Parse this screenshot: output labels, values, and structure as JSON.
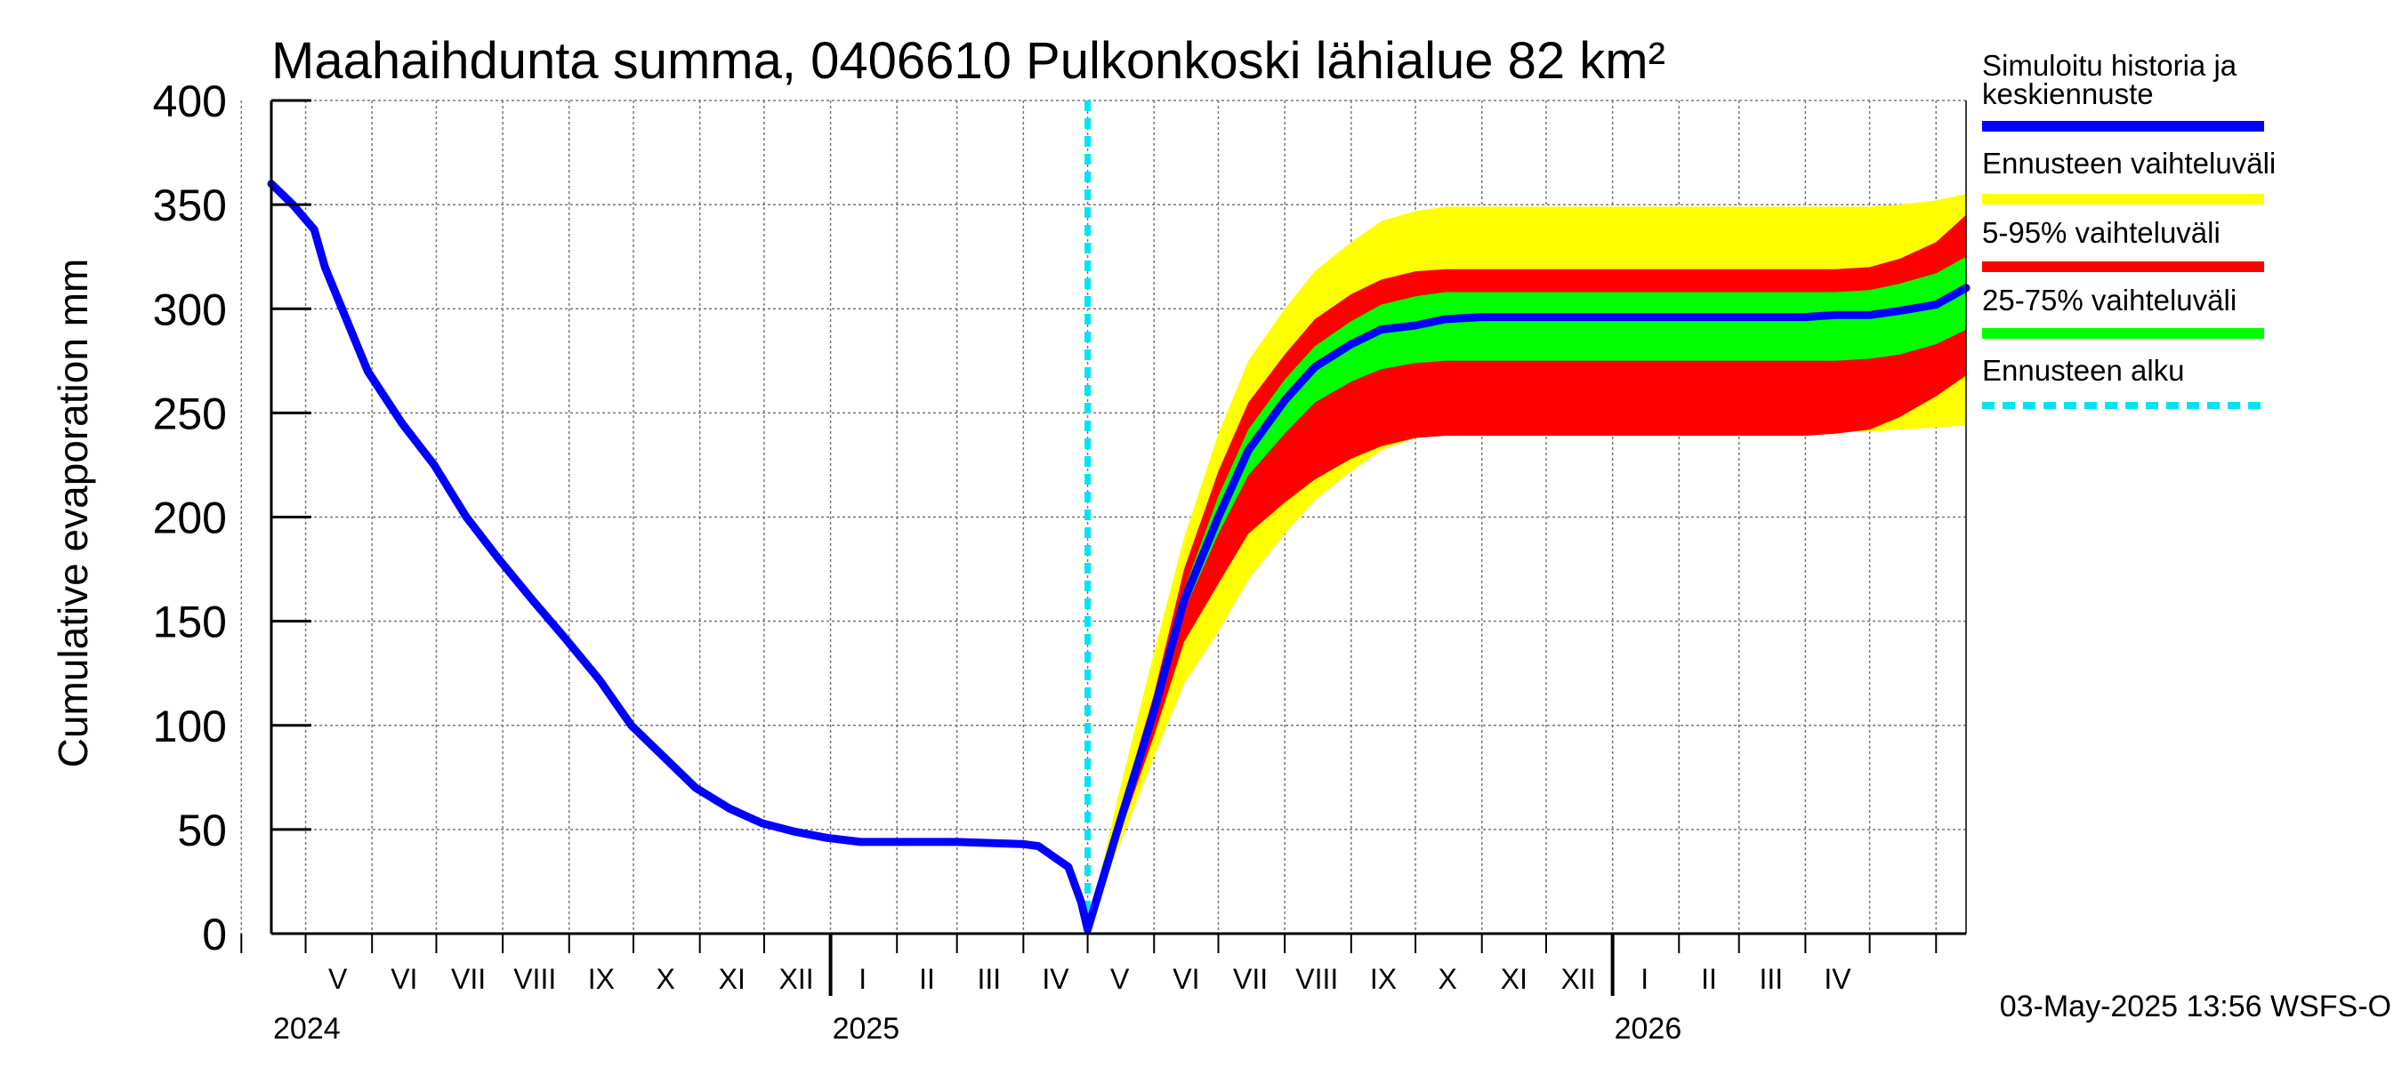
{
  "chart_data": {
    "type": "area",
    "title": "Maahaihdunta summa, 0406610 Pulkonkoski lähialue 82 km²",
    "ylabel": "Cumulative evaporation   mm",
    "xlabel": "",
    "ylim": [
      0,
      400
    ],
    "yticks": [
      0,
      50,
      100,
      150,
      200,
      250,
      300,
      350,
      400
    ],
    "grid": true,
    "x_start": "2024-04-15",
    "x_end": "2026-06-15",
    "forecast_start": "2025-05-01",
    "month_labels": [
      {
        "label": "V",
        "mid": "2024-05-16"
      },
      {
        "label": "VI",
        "mid": "2024-06-16"
      },
      {
        "label": "VII",
        "mid": "2024-07-16"
      },
      {
        "label": "VIII",
        "mid": "2024-08-16"
      },
      {
        "label": "IX",
        "mid": "2024-09-16"
      },
      {
        "label": "X",
        "mid": "2024-10-16"
      },
      {
        "label": "XI",
        "mid": "2024-11-16"
      },
      {
        "label": "XII",
        "mid": "2024-12-16"
      },
      {
        "label": "I",
        "mid": "2025-01-16"
      },
      {
        "label": "II",
        "mid": "2025-02-15"
      },
      {
        "label": "III",
        "mid": "2025-03-16"
      },
      {
        "label": "IV",
        "mid": "2025-04-16"
      },
      {
        "label": "V",
        "mid": "2025-05-16"
      },
      {
        "label": "VI",
        "mid": "2025-06-16"
      },
      {
        "label": "VII",
        "mid": "2025-07-16"
      },
      {
        "label": "VIII",
        "mid": "2025-08-16"
      },
      {
        "label": "IX",
        "mid": "2025-09-16"
      },
      {
        "label": "X",
        "mid": "2025-10-16"
      },
      {
        "label": "XI",
        "mid": "2025-11-16"
      },
      {
        "label": "XII",
        "mid": "2025-12-16"
      },
      {
        "label": "I",
        "mid": "2026-01-16"
      },
      {
        "label": "II",
        "mid": "2026-02-15"
      },
      {
        "label": "III",
        "mid": "2026-03-16"
      },
      {
        "label": "IV",
        "mid": "2026-04-16"
      }
    ],
    "year_labels": [
      {
        "label": "2024",
        "date": "2024-04-15"
      },
      {
        "label": "2025",
        "date": "2025-01-01"
      },
      {
        "label": "2026",
        "date": "2026-01-01"
      }
    ],
    "history": {
      "name": "Simuloitu historia ja keskiennuste",
      "color": "#0000ff",
      "points": [
        [
          "2024-04-15",
          360
        ],
        [
          "2024-04-25",
          350
        ],
        [
          "2024-05-05",
          338
        ],
        [
          "2024-05-10",
          320
        ],
        [
          "2024-05-20",
          295
        ],
        [
          "2024-05-30",
          270
        ],
        [
          "2024-06-15",
          245
        ],
        [
          "2024-06-30",
          225
        ],
        [
          "2024-07-15",
          200
        ],
        [
          "2024-07-30",
          180
        ],
        [
          "2024-08-15",
          160
        ],
        [
          "2024-08-30",
          142
        ],
        [
          "2024-09-15",
          122
        ],
        [
          "2024-09-30",
          100
        ],
        [
          "2024-10-15",
          85
        ],
        [
          "2024-10-30",
          70
        ],
        [
          "2024-11-15",
          60
        ],
        [
          "2024-11-30",
          53
        ],
        [
          "2024-12-15",
          49
        ],
        [
          "2024-12-30",
          46
        ],
        [
          "2025-01-15",
          44
        ],
        [
          "2025-03-01",
          44
        ],
        [
          "2025-04-01",
          43
        ],
        [
          "2025-04-08",
          42
        ],
        [
          "2025-04-15",
          37
        ],
        [
          "2025-04-22",
          32
        ],
        [
          "2025-04-28",
          15
        ],
        [
          "2025-05-01",
          2
        ]
      ]
    },
    "series": [
      {
        "name": "Ennusteen vaihteluväli",
        "color": "#ffff00",
        "dates": [
          "2025-05-01",
          "2025-05-15",
          "2025-06-01",
          "2025-06-15",
          "2025-07-01",
          "2025-07-15",
          "2025-08-01",
          "2025-08-15",
          "2025-09-01",
          "2025-09-15",
          "2025-10-01",
          "2025-10-15",
          "2025-11-01",
          "2025-12-01",
          "2026-01-01",
          "2026-02-01",
          "2026-03-01",
          "2026-04-01",
          "2026-04-15",
          "2026-05-01",
          "2026-05-15",
          "2026-06-01",
          "2026-06-15"
        ],
        "lower": [
          2,
          40,
          85,
          120,
          145,
          170,
          192,
          208,
          222,
          232,
          238,
          240,
          241,
          241,
          241,
          241,
          241,
          241,
          241,
          241,
          242,
          243,
          244
        ],
        "upper": [
          2,
          65,
          135,
          190,
          240,
          275,
          300,
          318,
          332,
          342,
          347,
          349,
          349,
          349,
          349,
          349,
          349,
          349,
          349,
          349,
          350,
          352,
          355
        ]
      },
      {
        "name": "5-95% vaihteluväli",
        "color": "#ff0000",
        "dates": [
          "2025-05-01",
          "2025-05-15",
          "2025-06-01",
          "2025-06-15",
          "2025-07-01",
          "2025-07-15",
          "2025-08-01",
          "2025-08-15",
          "2025-09-01",
          "2025-09-15",
          "2025-10-01",
          "2025-10-15",
          "2025-11-01",
          "2025-12-01",
          "2026-01-01",
          "2026-02-01",
          "2026-03-01",
          "2026-04-01",
          "2026-04-15",
          "2026-05-01",
          "2026-05-15",
          "2026-06-01",
          "2026-06-15"
        ],
        "lower": [
          2,
          45,
          95,
          140,
          168,
          192,
          207,
          218,
          228,
          234,
          238,
          239,
          239,
          239,
          239,
          239,
          239,
          239,
          240,
          242,
          248,
          258,
          268
        ],
        "upper": [
          2,
          55,
          115,
          175,
          222,
          255,
          278,
          295,
          307,
          314,
          318,
          319,
          319,
          319,
          319,
          319,
          319,
          319,
          319,
          320,
          324,
          332,
          345
        ]
      },
      {
        "name": "25-75% vaihteluväli",
        "color": "#00ff00",
        "dates": [
          "2025-05-01",
          "2025-05-15",
          "2025-06-01",
          "2025-06-15",
          "2025-07-01",
          "2025-07-15",
          "2025-08-01",
          "2025-08-15",
          "2025-09-01",
          "2025-09-15",
          "2025-10-01",
          "2025-10-15",
          "2025-11-01",
          "2025-12-01",
          "2026-01-01",
          "2026-02-01",
          "2026-03-01",
          "2026-04-01",
          "2026-04-15",
          "2026-05-01",
          "2026-05-15",
          "2026-06-01",
          "2026-06-15"
        ],
        "lower": [
          2,
          50,
          105,
          155,
          192,
          220,
          240,
          255,
          265,
          271,
          274,
          275,
          275,
          275,
          275,
          275,
          275,
          275,
          275,
          276,
          278,
          283,
          290
        ],
        "upper": [
          2,
          52,
          110,
          165,
          210,
          242,
          266,
          282,
          294,
          302,
          306,
          308,
          308,
          308,
          308,
          308,
          308,
          308,
          308,
          309,
          312,
          317,
          325
        ]
      },
      {
        "name": "Keskiennuste",
        "color": "#0000ff",
        "dates": [
          "2025-05-01",
          "2025-05-15",
          "2025-06-01",
          "2025-06-15",
          "2025-07-01",
          "2025-07-15",
          "2025-08-01",
          "2025-08-15",
          "2025-09-01",
          "2025-09-15",
          "2025-10-01",
          "2025-10-15",
          "2025-11-01",
          "2025-12-01",
          "2026-01-01",
          "2026-02-01",
          "2026-03-01",
          "2026-04-01",
          "2026-04-15",
          "2026-05-01",
          "2026-05-15",
          "2026-06-01",
          "2026-06-15"
        ],
        "values": [
          2,
          50,
          107,
          160,
          200,
          232,
          256,
          272,
          283,
          290,
          292,
          295,
          296,
          296,
          296,
          296,
          296,
          296,
          297,
          297,
          299,
          302,
          310
        ]
      }
    ],
    "legend": {
      "position": "right",
      "entries": [
        {
          "label_line1": "Simuloitu historia ja",
          "label_line2": "keskiennuste",
          "color": "#0000ff",
          "style": "solid"
        },
        {
          "label_line1": "Ennusteen vaihteluväli",
          "color": "#ffff00",
          "style": "solid"
        },
        {
          "label_line1": "5-95% vaihteluväli",
          "color": "#ff0000",
          "style": "solid"
        },
        {
          "label_line1": "25-75% vaihteluväli",
          "color": "#00ff00",
          "style": "solid"
        },
        {
          "label_line1": "Ennusteen alku",
          "color": "#00e5ee",
          "style": "dashed"
        }
      ]
    },
    "footer": "03-May-2025 13:56 WSFS-O"
  }
}
